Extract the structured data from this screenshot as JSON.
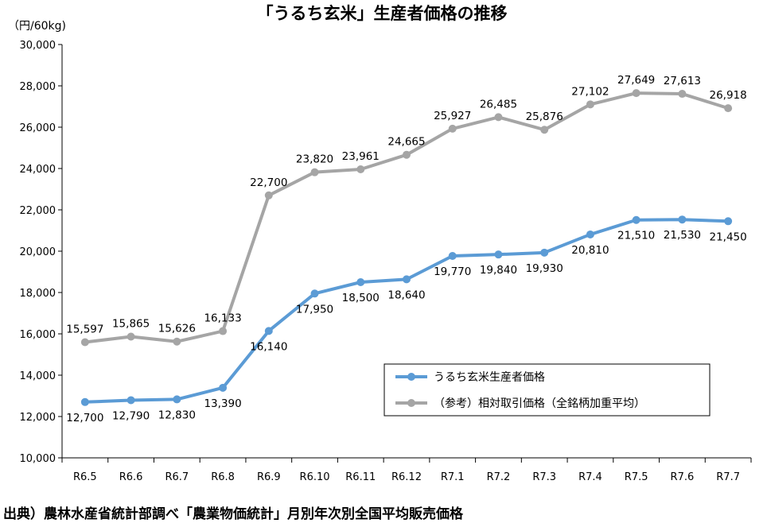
{
  "source_note": "出典）農林水産省統計部調べ「農業物価統計」月別年次別全国平均販売価格",
  "chart_data": {
    "type": "line",
    "title": "「うるち玄米」生産者価格の推移",
    "unit_label": "（円/60kg)",
    "xlabel": "",
    "ylabel": "",
    "categories": [
      "R6.5",
      "R6.6",
      "R6.7",
      "R6.8",
      "R6.9",
      "R6.10",
      "R6.11",
      "R6.12",
      "R7.1",
      "R7.2",
      "R7.3",
      "R7.4",
      "R7.5",
      "R7.6",
      "R7.7"
    ],
    "ylim": [
      10000,
      30000
    ],
    "yticks": [
      10000,
      12000,
      14000,
      16000,
      18000,
      20000,
      22000,
      24000,
      26000,
      28000,
      30000
    ],
    "ytick_labels": [
      "10,000",
      "12,000",
      "14,000",
      "16,000",
      "18,000",
      "20,000",
      "22,000",
      "24,000",
      "26,000",
      "28,000",
      "30,000"
    ],
    "grid": false,
    "legend_position": "lower-right",
    "series": [
      {
        "name": "うるち玄米生産者価格",
        "color": "#5B9BD5",
        "label_position": "below",
        "values": [
          12700,
          12790,
          12830,
          13390,
          16140,
          17950,
          18500,
          18640,
          19770,
          19840,
          19930,
          20810,
          21510,
          21530,
          21450
        ],
        "labels": [
          "12,700",
          "12,790",
          "12,830",
          "13,390",
          "16,140",
          "17,950",
          "18,500",
          "18,640",
          "19,770",
          "19,840",
          "19,930",
          "20,810",
          "21,510",
          "21,530",
          "21,450"
        ]
      },
      {
        "name": "（参考）相対取引価格（全銘柄加重平均）",
        "color": "#A5A5A5",
        "label_position": "above",
        "values": [
          15597,
          15865,
          15626,
          16133,
          22700,
          23820,
          23961,
          24665,
          25927,
          26485,
          25876,
          27102,
          27649,
          27613,
          26918
        ],
        "labels": [
          "15,597",
          "15,865",
          "15,626",
          "16,133",
          "22,700",
          "23,820",
          "23,961",
          "24,665",
          "25,927",
          "26,485",
          "25,876",
          "27,102",
          "27,649",
          "27,613",
          "26,918"
        ]
      }
    ]
  }
}
